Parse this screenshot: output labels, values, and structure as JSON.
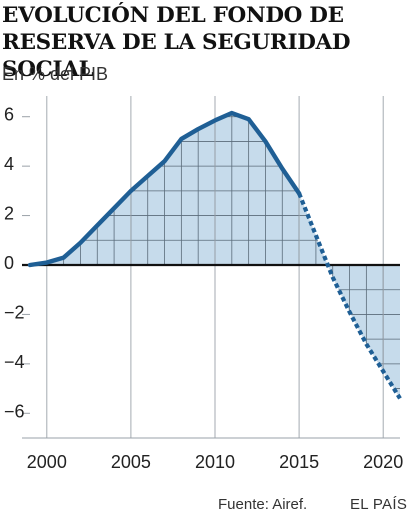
{
  "header": {
    "title_line1": "EVOLUCIÓN DEL FONDO DE",
    "title_line2": "RESERVA DE LA SEGURIDAD SOCIAL",
    "subtitle": "En % del PIB"
  },
  "footer": {
    "source": "Fuente: Airef.",
    "brand": "EL PAÍS"
  },
  "colors": {
    "line": "#1f5f95",
    "fill": "#c6dbeb",
    "grid": "#5a6b7a",
    "axis": "#9aa1a8"
  },
  "chart_data": {
    "type": "line",
    "title": "EVOLUCIÓN DEL FONDO DE RESERVA DE LA SEGURIDAD SOCIAL",
    "ylabel": "En % del PIB",
    "xlabel": "",
    "xlim": [
      1999,
      2021
    ],
    "ylim": [
      -7,
      7
    ],
    "grid": true,
    "xticks": [
      2000,
      2005,
      2010,
      2015,
      2020
    ],
    "xtick_labels": [
      "2000",
      "2005",
      "2010",
      "2015",
      "2020"
    ],
    "yticks": [
      6,
      4,
      2,
      0,
      -2,
      -4,
      -6
    ],
    "ytick_labels": [
      "6",
      "4",
      "2",
      "0",
      "−2",
      "−4",
      "−6"
    ],
    "series": [
      {
        "style": "solid",
        "x": [
          1999,
          2000,
          2001,
          2002,
          2003,
          2004,
          2005,
          2006,
          2007,
          2008,
          2009,
          2010,
          2011,
          2012,
          2013,
          2014,
          2015
        ],
        "y": [
          0.0,
          0.1,
          0.3,
          0.9,
          1.6,
          2.3,
          3.0,
          3.6,
          4.2,
          5.1,
          5.5,
          5.85,
          6.15,
          5.9,
          5.0,
          3.9,
          2.9
        ]
      },
      {
        "style": "dotted",
        "x": [
          2015,
          2016,
          2017,
          2018,
          2019,
          2020,
          2021
        ],
        "y": [
          2.9,
          1.2,
          -0.5,
          -1.9,
          -3.2,
          -4.3,
          -5.4
        ]
      }
    ]
  }
}
